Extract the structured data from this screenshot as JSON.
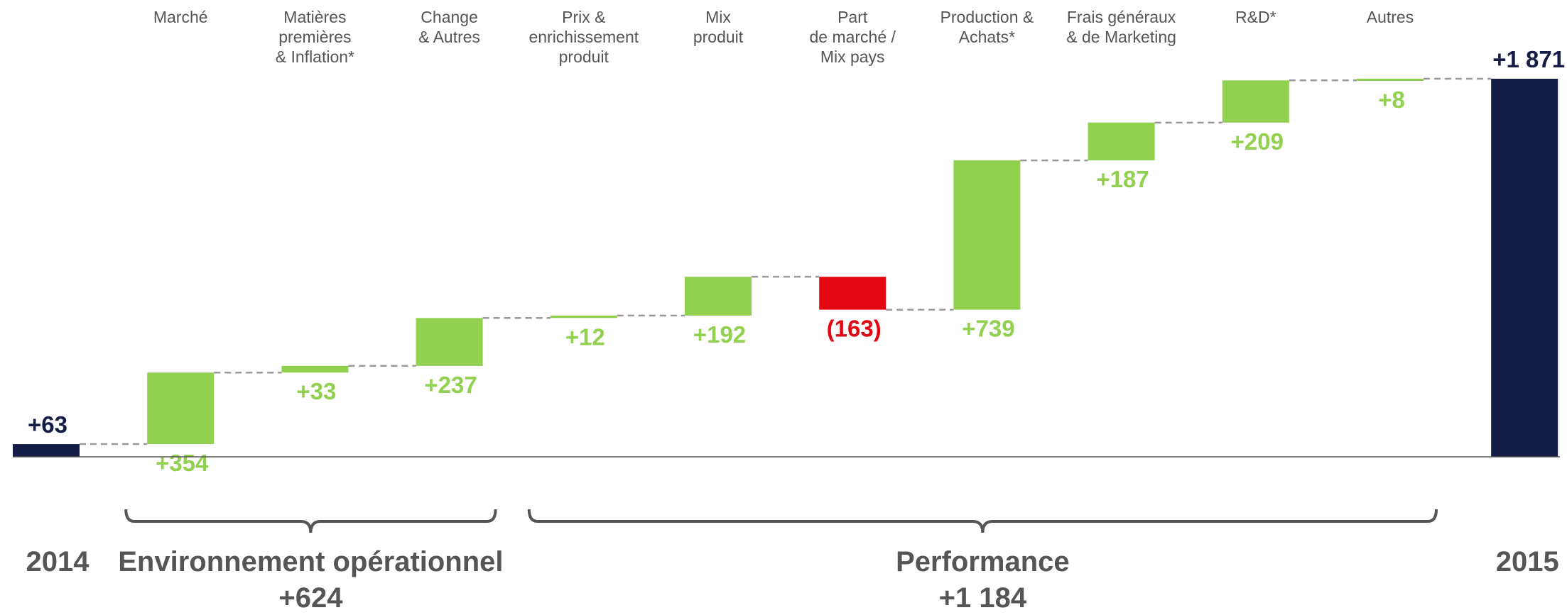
{
  "colors": {
    "total": "#151c45",
    "increase": "#92d050",
    "decrease": "#e30613",
    "connector": "#999999",
    "bracket": "#555555",
    "text": "#555555"
  },
  "chart_data": {
    "type": "waterfall",
    "start": {
      "label": "2014",
      "value": 63,
      "display": "+63"
    },
    "end": {
      "label": "2015",
      "value": 1871,
      "display": "+1 871"
    },
    "steps": [
      {
        "label": [
          "Marché"
        ],
        "value": 354,
        "display": "+354"
      },
      {
        "label": [
          "Matières",
          "premières",
          "& Inflation*"
        ],
        "value": 33,
        "display": "+33"
      },
      {
        "label": [
          "Change",
          "& Autres"
        ],
        "value": 237,
        "display": "+237"
      },
      {
        "label": [
          "Prix &",
          "enrichissement",
          "produit"
        ],
        "value": 12,
        "display": "+12"
      },
      {
        "label": [
          "Mix",
          "produit"
        ],
        "value": 192,
        "display": "+192"
      },
      {
        "label": [
          "Part",
          "de marché /",
          "Mix pays"
        ],
        "value": -163,
        "display": "(163)"
      },
      {
        "label": [
          "Production &",
          "Achats*"
        ],
        "value": 739,
        "display": "+739"
      },
      {
        "label": [
          "Frais généraux",
          "& de Marketing"
        ],
        "value": 187,
        "display": "+187"
      },
      {
        "label": [
          "R&D*"
        ],
        "value": 209,
        "display": "+209"
      },
      {
        "label": [
          "Autres"
        ],
        "value": 8,
        "display": "+8"
      }
    ],
    "groups": [
      {
        "name": "Environnement opérationnel",
        "total": "+624",
        "from_step": 0,
        "to_step": 2
      },
      {
        "name": "Performance",
        "total": "+1 184",
        "from_step": 3,
        "to_step": 9
      }
    ]
  }
}
